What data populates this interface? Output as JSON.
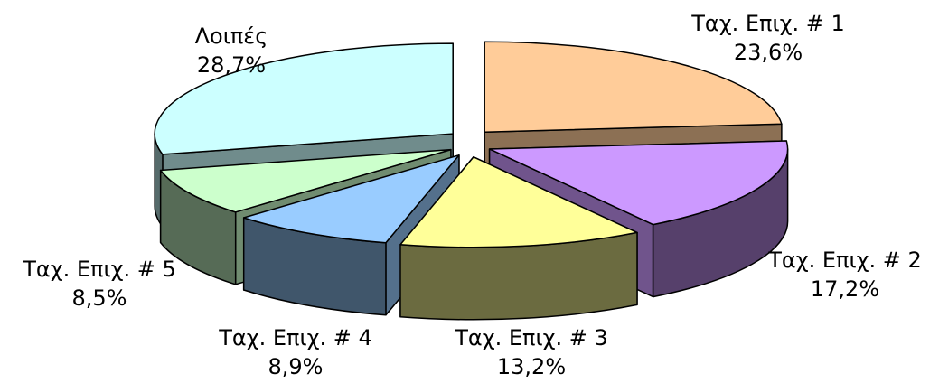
{
  "chart_data": {
    "type": "pie",
    "style": "3d-exploded",
    "legend": "none",
    "slices": [
      {
        "label": "Ταχ. Επιχ. # 1",
        "value": 23.6,
        "value_text": "23,6%",
        "color": "#FFCC99"
      },
      {
        "label": "Ταχ. Επιχ. # 2",
        "value": 17.2,
        "value_text": "17,2%",
        "color": "#CC99FF"
      },
      {
        "label": "Ταχ. Επιχ. # 3",
        "value": 13.2,
        "value_text": "13,2%",
        "color": "#FFFF99"
      },
      {
        "label": "Ταχ. Επιχ. # 4",
        "value": 8.9,
        "value_text": "8,9%",
        "color": "#99CCFF"
      },
      {
        "label": "Ταχ. Επιχ. # 5",
        "value": 8.5,
        "value_text": "8,5%",
        "color": "#CCFFCC"
      },
      {
        "label": "Λοιπές",
        "value": 28.7,
        "value_text": "28,7%",
        "color": "#CCFFFF"
      }
    ]
  }
}
